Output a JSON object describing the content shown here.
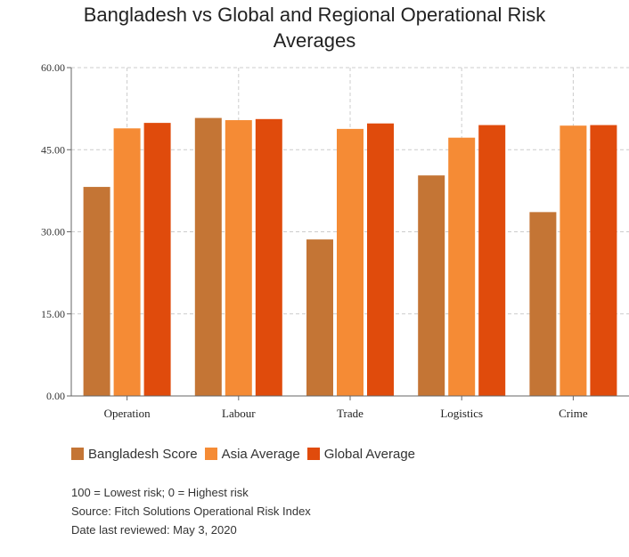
{
  "chart_data": {
    "type": "bar",
    "title_lines": [
      "Bangladesh vs Global and Regional Operational Risk",
      "Averages"
    ],
    "categories": [
      "Operation",
      "Labour",
      "Trade",
      "Logistics",
      "Crime"
    ],
    "series": [
      {
        "name": "Bangladesh Score",
        "color": "#c47535",
        "values": [
          38.2,
          50.8,
          28.6,
          40.3,
          33.6
        ]
      },
      {
        "name": "Asia Average",
        "color": "#f58b35",
        "values": [
          48.9,
          50.4,
          48.8,
          47.2,
          49.4
        ]
      },
      {
        "name": "Global Average",
        "color": "#e04b0c",
        "values": [
          49.9,
          50.6,
          49.8,
          49.5,
          49.5
        ]
      }
    ],
    "ylim": [
      0,
      60
    ],
    "yticks": [
      "0.00",
      "15.00",
      "30.00",
      "45.00",
      "60.00"
    ],
    "grid": true,
    "legend_position": "bottom-left"
  },
  "notes": [
    "100 = Lowest risk; 0 = Highest risk",
    "Source: Fitch Solutions Operational Risk Index",
    "Date last reviewed: May 3, 2020"
  ]
}
